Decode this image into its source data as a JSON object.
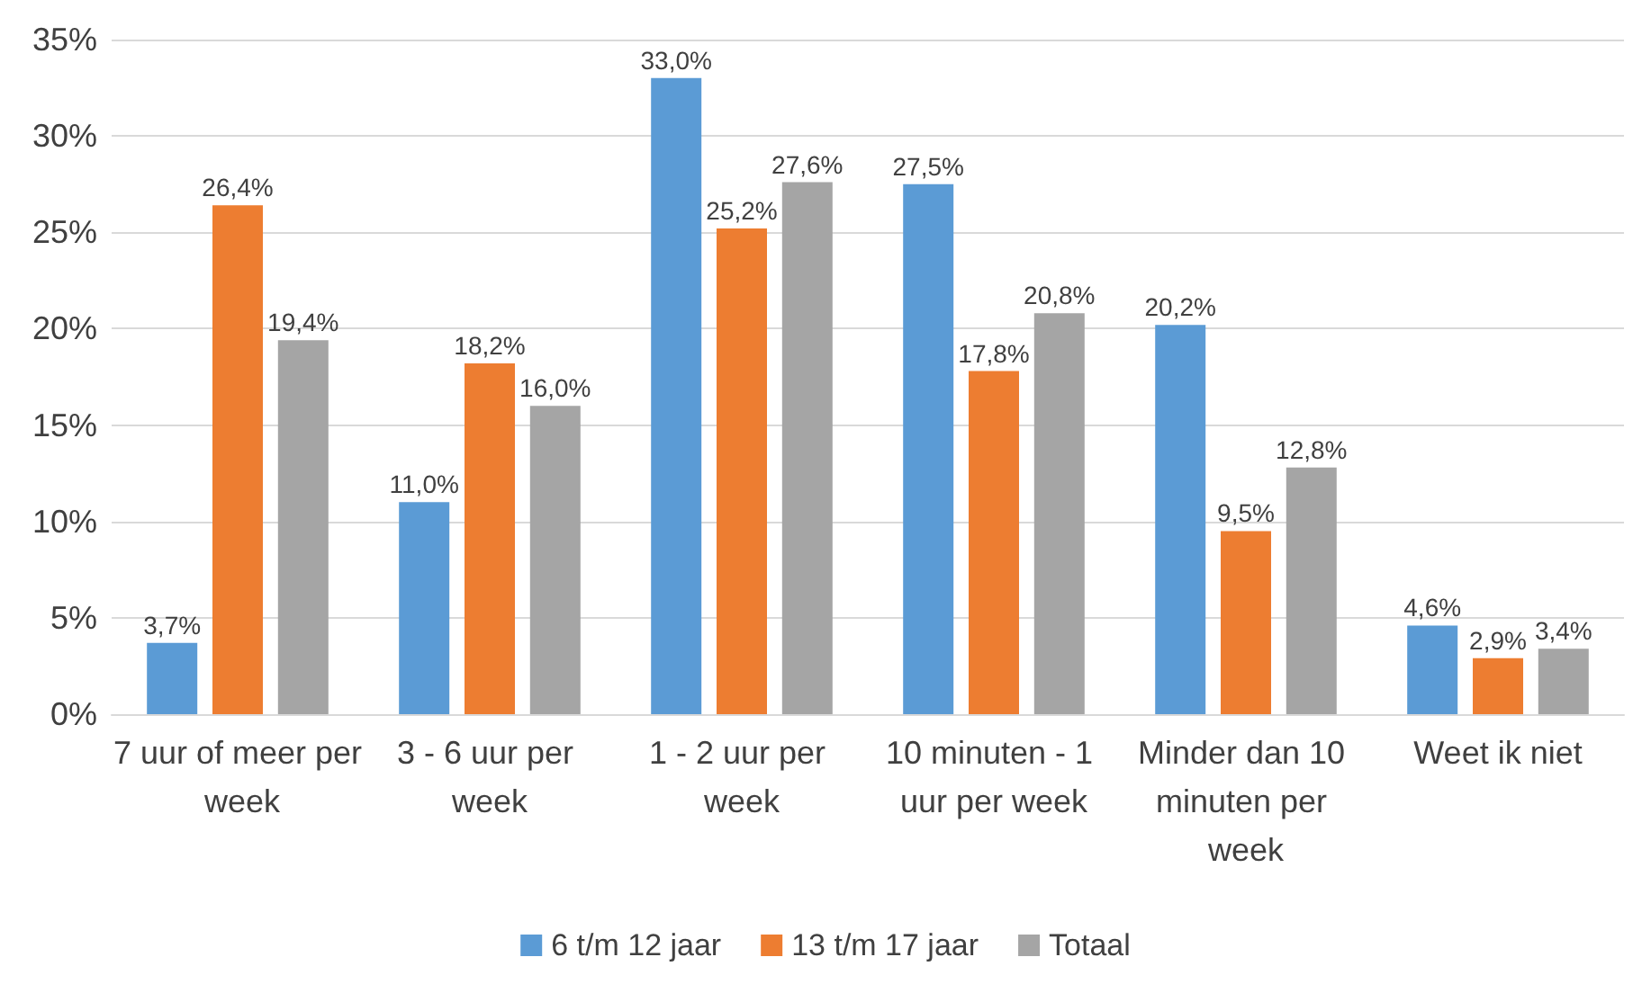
{
  "chart_data": {
    "type": "bar",
    "categories": [
      "7 uur of meer per week",
      "3 - 6 uur per week",
      "1 - 2 uur per week",
      "10 minuten - 1 uur per week",
      "Minder dan 10 minuten per week",
      "Weet ik niet"
    ],
    "series": [
      {
        "name": "6 t/m 12 jaar",
        "color": "#5b9bd5",
        "values": [
          3.7,
          11.0,
          33.0,
          27.5,
          20.2,
          4.6
        ],
        "value_labels": [
          "3,7%",
          "11,0%",
          "33,0%",
          "27,5%",
          "20,2%",
          "4,6%"
        ]
      },
      {
        "name": "13 t/m 17 jaar",
        "color": "#ed7d31",
        "values": [
          26.4,
          18.2,
          25.2,
          17.8,
          9.5,
          2.9
        ],
        "value_labels": [
          "26,4%",
          "18,2%",
          "25,2%",
          "17,8%",
          "9,5%",
          "2,9%"
        ]
      },
      {
        "name": "Totaal",
        "color": "#a5a5a5",
        "values": [
          19.4,
          16.0,
          27.6,
          20.8,
          12.8,
          3.4
        ],
        "value_labels": [
          "19,4%",
          "16,0%",
          "27,6%",
          "20,8%",
          "12,8%",
          "3,4%"
        ]
      }
    ],
    "ylim": [
      0,
      35
    ],
    "yticks": [
      {
        "value": 0,
        "label": "0%"
      },
      {
        "value": 5,
        "label": "5%"
      },
      {
        "value": 10,
        "label": "10%"
      },
      {
        "value": 15,
        "label": "15%"
      },
      {
        "value": 20,
        "label": "20%"
      },
      {
        "value": 25,
        "label": "25%"
      },
      {
        "value": 30,
        "label": "30%"
      },
      {
        "value": 35,
        "label": "35%"
      }
    ],
    "grid": "y",
    "legend": "bottom"
  }
}
